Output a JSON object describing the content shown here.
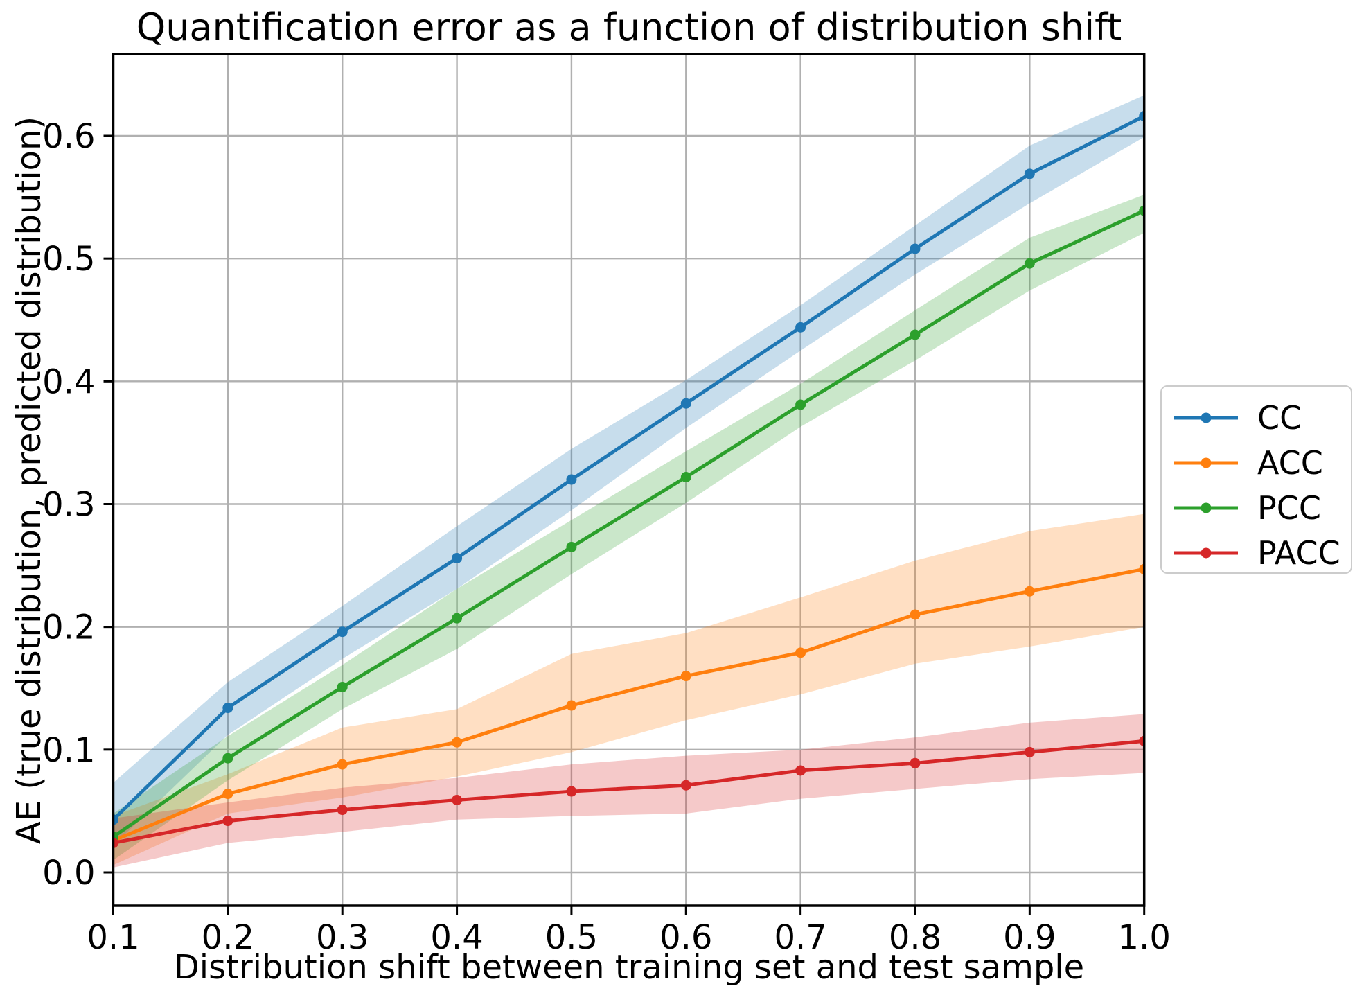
{
  "figure": {
    "background": "#ffffff",
    "text_color": "#000000",
    "grid_color": "#b0b0b0",
    "spine_color": "#000000",
    "legend_border_color": "#cccccc"
  },
  "chart_data": {
    "type": "line",
    "title": "Quantification error as a function of distribution shift",
    "xlabel": "Distribution shift between training set and test sample",
    "ylabel": "AE (true distribution, predicted distribution)",
    "grid": true,
    "legend_position": "outside right center",
    "xlim": [
      0.1,
      1.0
    ],
    "ylim": [
      -0.0271,
      0.6666
    ],
    "x": [
      0.1,
      0.2,
      0.3,
      0.4,
      0.5,
      0.6,
      0.7,
      0.8,
      0.9,
      1.0
    ],
    "x_ticklabels": [
      "0.1",
      "0.2",
      "0.3",
      "0.4",
      "0.5",
      "0.6",
      "0.7",
      "0.8",
      "0.9",
      "1.0"
    ],
    "y_ticks": [
      0.0,
      0.1,
      0.2,
      0.3,
      0.4,
      0.5,
      0.6
    ],
    "y_ticklabels": [
      "0.0",
      "0.1",
      "0.2",
      "0.3",
      "0.4",
      "0.5",
      "0.6"
    ],
    "band_opacity": 0.25,
    "series": [
      {
        "name": "CC",
        "color": "#1f77b4",
        "values": [
          0.043,
          0.134,
          0.196,
          0.256,
          0.32,
          0.382,
          0.444,
          0.508,
          0.569,
          0.616
        ],
        "band_lo": [
          0.022,
          0.112,
          0.174,
          0.231,
          0.295,
          0.362,
          0.425,
          0.487,
          0.545,
          0.599
        ],
        "band_hi": [
          0.073,
          0.155,
          0.217,
          0.282,
          0.345,
          0.401,
          0.462,
          0.527,
          0.592,
          0.633
        ]
      },
      {
        "name": "ACC",
        "color": "#ff7f0e",
        "values": [
          0.026,
          0.064,
          0.088,
          0.106,
          0.136,
          0.16,
          0.179,
          0.21,
          0.229,
          0.247
        ],
        "band_lo": [
          0.006,
          0.048,
          0.061,
          0.078,
          0.098,
          0.124,
          0.145,
          0.17,
          0.184,
          0.2
        ],
        "band_hi": [
          0.046,
          0.08,
          0.118,
          0.133,
          0.178,
          0.195,
          0.224,
          0.254,
          0.278,
          0.292
        ]
      },
      {
        "name": "PCC",
        "color": "#2ca02c",
        "values": [
          0.029,
          0.093,
          0.151,
          0.207,
          0.265,
          0.322,
          0.381,
          0.438,
          0.496,
          0.539
        ],
        "band_lo": [
          0.01,
          0.075,
          0.133,
          0.182,
          0.243,
          0.301,
          0.363,
          0.417,
          0.474,
          0.521
        ],
        "band_hi": [
          0.048,
          0.111,
          0.169,
          0.231,
          0.287,
          0.343,
          0.398,
          0.458,
          0.517,
          0.552
        ]
      },
      {
        "name": "PACC",
        "color": "#d62728",
        "values": [
          0.024,
          0.042,
          0.051,
          0.059,
          0.066,
          0.071,
          0.083,
          0.089,
          0.098,
          0.107
        ],
        "band_lo": [
          0.004,
          0.024,
          0.033,
          0.043,
          0.046,
          0.048,
          0.06,
          0.068,
          0.076,
          0.081
        ],
        "band_hi": [
          0.044,
          0.057,
          0.069,
          0.077,
          0.088,
          0.095,
          0.1,
          0.11,
          0.122,
          0.129
        ]
      }
    ]
  }
}
